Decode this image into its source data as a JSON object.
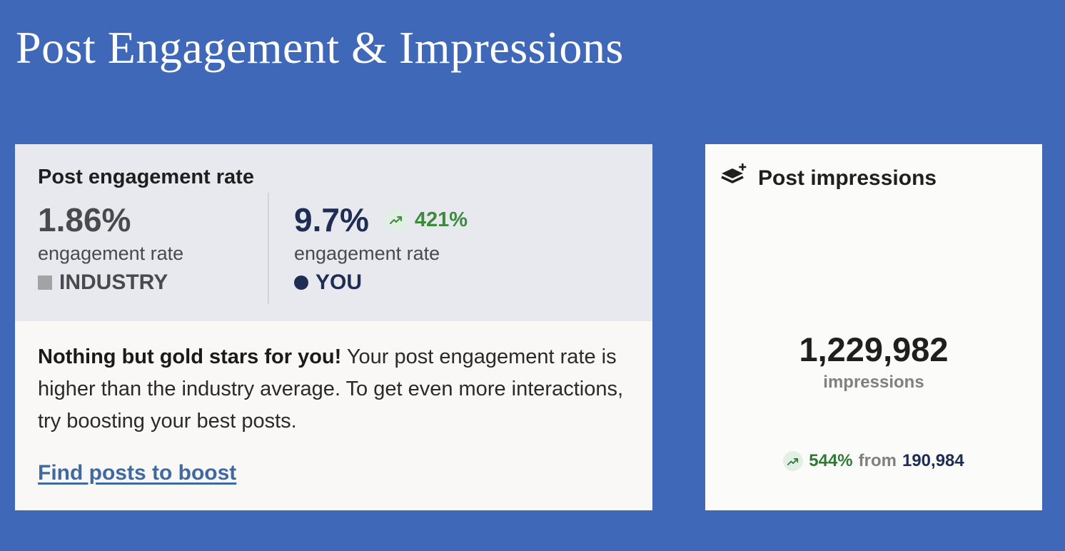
{
  "page": {
    "title": "Post Engagement & Impressions",
    "background": "#4068b8"
  },
  "engagement": {
    "heading": "Post engagement rate",
    "industry": {
      "value": "1.86%",
      "label": "engagement rate",
      "legend": "INDUSTRY",
      "legend_color": "#a3a3a6"
    },
    "you": {
      "value": "9.7%",
      "change": "421%",
      "trend_icon": "trending-up-icon",
      "label": "engagement rate",
      "legend": "YOU",
      "legend_color": "#1f2d55"
    },
    "message_bold": "Nothing but gold stars for you!",
    "message_rest": " Your post engagement rate is higher than the industry average. To get even more interactions, try boosting your best posts.",
    "link_label": "Find posts to boost"
  },
  "impressions": {
    "heading": "Post impressions",
    "icon": "layers-plus-icon",
    "value": "1,229,982",
    "label": "impressions",
    "change_pct": "544%",
    "change_from_label": "from",
    "previous_value": "190,984",
    "trend_icon": "trending-up-icon",
    "positive_color": "#2f7a34"
  }
}
